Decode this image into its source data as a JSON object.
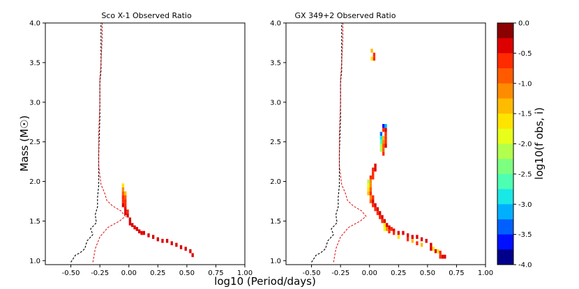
{
  "chart_data": {
    "type": "heatmap",
    "xlabel": "log10 (Period/days)",
    "ylabel": "Mass (M☉)",
    "colorbar": {
      "label": "log10(f obs, i)",
      "range": [
        -4.0,
        0.0
      ],
      "ticks": [
        "0.0",
        "-0.5",
        "-1.0",
        "-1.5",
        "-2.0",
        "-2.5",
        "-3.0",
        "-3.5",
        "-4.0"
      ],
      "levels": 16,
      "colors": [
        "#8b0000",
        "#dd0000",
        "#ff2a00",
        "#ff5a00",
        "#ff8c00",
        "#ffbb00",
        "#ffe400",
        "#e8ff1a",
        "#b3ff4d",
        "#7dff80",
        "#4dffb3",
        "#1ae8e6",
        "#00b0ff",
        "#0060ff",
        "#0010ff",
        "#00008b"
      ]
    },
    "panels": [
      {
        "title": "Sco X-1 Observed Ratio",
        "xlim": [
          -0.72,
          1.0
        ],
        "ylim": [
          0.95,
          4.0
        ],
        "xticks": [
          "-0.50",
          "-0.25",
          "0.00",
          "0.25",
          "0.50",
          "0.75",
          "1.00"
        ],
        "yticks": [
          "1.0",
          "1.5",
          "2.0",
          "2.5",
          "3.0",
          "3.5",
          "4.0"
        ],
        "cells": [
          [
            -0.05,
            1.95,
            -1.5
          ],
          [
            -0.05,
            1.9,
            -1.2
          ],
          [
            -0.05,
            1.85,
            -0.9
          ],
          [
            -0.05,
            1.8,
            -0.6
          ],
          [
            -0.05,
            1.75,
            -0.5
          ],
          [
            -0.05,
            1.7,
            -0.4
          ],
          [
            -0.03,
            1.85,
            -1.3
          ],
          [
            -0.03,
            1.8,
            -0.8
          ],
          [
            -0.03,
            1.75,
            -0.6
          ],
          [
            -0.03,
            1.7,
            -0.5
          ],
          [
            -0.03,
            1.65,
            -0.4
          ],
          [
            -0.03,
            1.6,
            -0.3
          ],
          [
            -0.01,
            1.62,
            -0.5
          ],
          [
            -0.01,
            1.57,
            -0.4
          ],
          [
            0.01,
            1.52,
            -0.45
          ],
          [
            0.01,
            1.47,
            -0.4
          ],
          [
            0.03,
            1.45,
            -0.3
          ],
          [
            0.05,
            1.42,
            -0.4
          ],
          [
            0.07,
            1.4,
            -0.35
          ],
          [
            0.09,
            1.37,
            -0.4
          ],
          [
            0.11,
            1.35,
            -0.3
          ],
          [
            0.13,
            1.35,
            -0.4
          ],
          [
            0.17,
            1.32,
            -0.3
          ],
          [
            0.21,
            1.3,
            -0.35
          ],
          [
            0.25,
            1.27,
            -0.3
          ],
          [
            0.29,
            1.25,
            -0.3
          ],
          [
            0.33,
            1.25,
            -0.35
          ],
          [
            0.37,
            1.22,
            -0.3
          ],
          [
            0.41,
            1.2,
            -0.35
          ],
          [
            0.45,
            1.17,
            -0.3
          ],
          [
            0.49,
            1.15,
            -0.35
          ],
          [
            0.53,
            1.12,
            -0.3
          ],
          [
            0.55,
            1.07,
            -0.35
          ]
        ],
        "dashed_black": [
          [
            -0.5,
            0.98
          ],
          [
            -0.46,
            1.07
          ],
          [
            -0.42,
            1.1
          ],
          [
            -0.38,
            1.15
          ],
          [
            -0.36,
            1.25
          ],
          [
            -0.31,
            1.33
          ],
          [
            -0.33,
            1.4
          ],
          [
            -0.28,
            1.48
          ],
          [
            -0.29,
            1.58
          ],
          [
            -0.27,
            1.68
          ],
          [
            -0.27,
            1.8
          ],
          [
            -0.26,
            1.95
          ],
          [
            -0.26,
            2.35
          ],
          [
            -0.25,
            2.8
          ],
          [
            -0.25,
            3.25
          ],
          [
            -0.24,
            3.4
          ],
          [
            -0.24,
            3.6
          ],
          [
            -0.24,
            4.0
          ]
        ],
        "dashed_red": [
          [
            -0.31,
            0.98
          ],
          [
            -0.29,
            1.15
          ],
          [
            -0.25,
            1.3
          ],
          [
            -0.18,
            1.42
          ],
          [
            -0.08,
            1.5
          ],
          [
            -0.03,
            1.56
          ],
          [
            -0.07,
            1.63
          ],
          [
            -0.14,
            1.69
          ],
          [
            -0.19,
            1.76
          ],
          [
            -0.21,
            1.86
          ],
          [
            -0.24,
            1.96
          ],
          [
            -0.26,
            2.2
          ],
          [
            -0.26,
            2.6
          ],
          [
            -0.25,
            3.0
          ],
          [
            -0.25,
            3.3
          ],
          [
            -0.24,
            3.5
          ],
          [
            -0.23,
            3.8
          ],
          [
            -0.23,
            4.0
          ]
        ]
      },
      {
        "title": "GX 349+2 Observed Ratio",
        "xlim": [
          -0.72,
          1.0
        ],
        "ylim": [
          0.95,
          4.0
        ],
        "xticks": [
          "-0.50",
          "-0.25",
          "0.00",
          "0.25",
          "0.50",
          "0.75",
          "1.00"
        ],
        "yticks": [
          "1.0",
          "1.5",
          "2.0",
          "2.5",
          "3.0",
          "3.5",
          "4.0"
        ],
        "cells": [
          [
            0.02,
            3.65,
            -1.3
          ],
          [
            0.04,
            3.6,
            -0.7
          ],
          [
            0.02,
            3.55,
            -1.6
          ],
          [
            0.04,
            3.55,
            -0.5
          ],
          [
            0.12,
            2.7,
            -3.5
          ],
          [
            0.14,
            2.7,
            -3.2
          ],
          [
            0.12,
            2.65,
            -0.5
          ],
          [
            0.14,
            2.65,
            -0.4
          ],
          [
            0.1,
            2.6,
            -3.4
          ],
          [
            0.12,
            2.55,
            -1.4
          ],
          [
            0.14,
            2.6,
            -0.5
          ],
          [
            0.1,
            2.55,
            -2.8
          ],
          [
            0.12,
            2.5,
            -1.2
          ],
          [
            0.14,
            2.55,
            -0.6
          ],
          [
            0.1,
            2.5,
            -2.5
          ],
          [
            0.12,
            2.45,
            -0.9
          ],
          [
            0.14,
            2.5,
            -0.5
          ],
          [
            0.1,
            2.45,
            -2.2
          ],
          [
            0.12,
            2.4,
            -0.8
          ],
          [
            0.14,
            2.45,
            -0.4
          ],
          [
            0.1,
            2.4,
            -2.0
          ],
          [
            0.12,
            2.35,
            -0.6
          ],
          [
            0.05,
            2.2,
            -0.3
          ],
          [
            0.03,
            2.15,
            -0.5
          ],
          [
            0.05,
            2.15,
            -0.4
          ],
          [
            0.03,
            2.1,
            -0.6
          ],
          [
            0.01,
            2.05,
            -0.7
          ],
          [
            0.03,
            2.05,
            -0.5
          ],
          [
            -0.01,
            2.0,
            -2.0
          ],
          [
            0.01,
            2.0,
            -1.2
          ],
          [
            -0.01,
            1.95,
            -1.8
          ],
          [
            0.01,
            1.95,
            -1.0
          ],
          [
            -0.01,
            1.9,
            -1.5
          ],
          [
            0.01,
            1.9,
            -0.8
          ],
          [
            -0.01,
            1.85,
            -1.3
          ],
          [
            0.01,
            1.85,
            -0.6
          ],
          [
            0.01,
            1.8,
            -1.0
          ],
          [
            0.03,
            1.8,
            -0.5
          ],
          [
            0.01,
            1.75,
            -0.8
          ],
          [
            0.03,
            1.75,
            -0.4
          ],
          [
            0.03,
            1.7,
            -0.5
          ],
          [
            0.05,
            1.7,
            -0.4
          ],
          [
            0.05,
            1.65,
            -0.6
          ],
          [
            0.07,
            1.65,
            -0.4
          ],
          [
            0.07,
            1.6,
            -0.5
          ],
          [
            0.09,
            1.6,
            -0.4
          ],
          [
            0.09,
            1.55,
            -0.7
          ],
          [
            0.11,
            1.55,
            -0.4
          ],
          [
            0.11,
            1.5,
            -0.5
          ],
          [
            0.13,
            1.5,
            -0.4
          ],
          [
            0.13,
            1.45,
            -1.6
          ],
          [
            0.15,
            1.45,
            -0.4
          ],
          [
            0.13,
            1.4,
            -1.8
          ],
          [
            0.17,
            1.42,
            -0.4
          ],
          [
            0.19,
            1.4,
            -0.5
          ],
          [
            0.21,
            1.38,
            -0.3
          ],
          [
            0.25,
            1.35,
            -0.4
          ],
          [
            0.29,
            1.35,
            -0.3
          ],
          [
            0.33,
            1.32,
            -0.4
          ],
          [
            0.37,
            1.3,
            -0.35
          ],
          [
            0.41,
            1.3,
            -0.4
          ],
          [
            0.45,
            1.27,
            -0.35
          ],
          [
            0.49,
            1.25,
            -0.4
          ],
          [
            0.53,
            1.2,
            -0.3
          ],
          [
            0.55,
            1.15,
            -1.6
          ],
          [
            0.57,
            1.12,
            -0.4
          ],
          [
            0.61,
            1.1,
            -0.5
          ],
          [
            0.63,
            1.05,
            -0.3
          ],
          [
            0.65,
            1.05,
            -0.4
          ],
          [
            0.61,
            1.05,
            -0.6
          ],
          [
            0.59,
            1.12,
            -1.5
          ],
          [
            0.53,
            1.15,
            -0.4
          ],
          [
            0.45,
            1.2,
            -1.4
          ],
          [
            0.41,
            1.22,
            -0.6
          ],
          [
            0.37,
            1.25,
            -1.3
          ],
          [
            0.33,
            1.27,
            -0.5
          ],
          [
            0.25,
            1.3,
            -1.6
          ],
          [
            0.17,
            1.37,
            -0.5
          ],
          [
            0.15,
            1.4,
            -1.2
          ],
          [
            0.21,
            1.35,
            -0.6
          ]
        ],
        "dashed_black": [
          [
            -0.5,
            0.98
          ],
          [
            -0.46,
            1.07
          ],
          [
            -0.42,
            1.1
          ],
          [
            -0.38,
            1.15
          ],
          [
            -0.36,
            1.25
          ],
          [
            -0.31,
            1.33
          ],
          [
            -0.33,
            1.4
          ],
          [
            -0.28,
            1.48
          ],
          [
            -0.29,
            1.58
          ],
          [
            -0.27,
            1.68
          ],
          [
            -0.27,
            1.8
          ],
          [
            -0.26,
            1.95
          ],
          [
            -0.26,
            2.35
          ],
          [
            -0.25,
            2.8
          ],
          [
            -0.25,
            3.25
          ],
          [
            -0.24,
            3.4
          ],
          [
            -0.24,
            3.6
          ],
          [
            -0.24,
            4.0
          ]
        ],
        "dashed_red": [
          [
            -0.31,
            0.98
          ],
          [
            -0.29,
            1.15
          ],
          [
            -0.25,
            1.3
          ],
          [
            -0.18,
            1.42
          ],
          [
            -0.08,
            1.5
          ],
          [
            -0.03,
            1.56
          ],
          [
            -0.07,
            1.63
          ],
          [
            -0.14,
            1.69
          ],
          [
            -0.19,
            1.76
          ],
          [
            -0.21,
            1.86
          ],
          [
            -0.24,
            1.96
          ],
          [
            -0.26,
            2.2
          ],
          [
            -0.26,
            2.6
          ],
          [
            -0.25,
            3.0
          ],
          [
            -0.25,
            3.3
          ],
          [
            -0.24,
            3.5
          ],
          [
            -0.23,
            3.8
          ],
          [
            -0.23,
            4.0
          ]
        ]
      }
    ]
  }
}
